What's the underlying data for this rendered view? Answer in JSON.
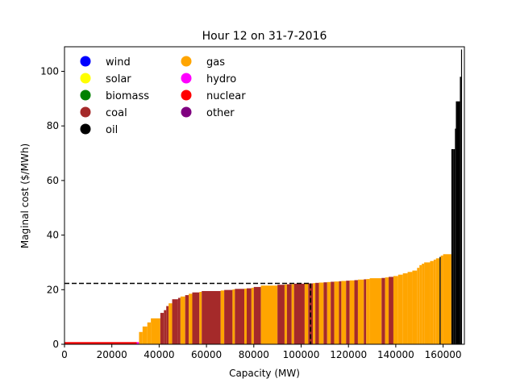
{
  "colors": {
    "wind": "#0000ff",
    "solar": "#ffff00",
    "biomass": "#008000",
    "coal": "#a52a2a",
    "oil": "#000000",
    "gas": "#ffa500",
    "hydro": "#ff00ff",
    "nuclear": "#ff0000",
    "other": "#800080"
  },
  "chart_data": {
    "type": "bar",
    "title": "Hour 12 on 31-7-2016",
    "xlabel": "Capacity (MW)",
    "ylabel": "Maginal cost ($/MWh)",
    "xlim": [
      0,
      169000
    ],
    "ylim": [
      0,
      109
    ],
    "xticks": [
      0,
      20000,
      40000,
      60000,
      80000,
      100000,
      120000,
      140000,
      160000
    ],
    "yticks": [
      0,
      20,
      40,
      60,
      80,
      100
    ],
    "legend": {
      "placement": "top-left",
      "columns": 2,
      "entries": [
        "wind",
        "solar",
        "biomass",
        "coal",
        "oil",
        "gas",
        "hydro",
        "nuclear",
        "other"
      ]
    },
    "clearing": {
      "capacity": 104000,
      "price": 22.3
    },
    "segments": [
      {
        "fuel": "nuclear",
        "from": 0,
        "to": 30500,
        "cost": 0.8
      },
      {
        "fuel": "hydro",
        "from": 30500,
        "to": 31500,
        "cost": 0.8
      },
      {
        "fuel": "gas",
        "from": 31500,
        "to": 33000,
        "cost": 4.5
      },
      {
        "fuel": "gas",
        "from": 33000,
        "to": 35000,
        "cost": 6.5
      },
      {
        "fuel": "gas",
        "from": 35000,
        "to": 36500,
        "cost": 8.0
      },
      {
        "fuel": "gas",
        "from": 36500,
        "to": 40500,
        "cost": 9.5
      },
      {
        "fuel": "coal",
        "from": 40500,
        "to": 42000,
        "cost": 11.5
      },
      {
        "fuel": "coal",
        "from": 42000,
        "to": 43000,
        "cost": 12.5
      },
      {
        "fuel": "coal",
        "from": 43000,
        "to": 44000,
        "cost": 14.0
      },
      {
        "fuel": "gas",
        "from": 44000,
        "to": 45500,
        "cost": 15.0
      },
      {
        "fuel": "coal",
        "from": 45500,
        "to": 48000,
        "cost": 16.5
      },
      {
        "fuel": "coal",
        "from": 48000,
        "to": 49000,
        "cost": 17.0
      },
      {
        "fuel": "gas",
        "from": 49000,
        "to": 51000,
        "cost": 17.5
      },
      {
        "fuel": "coal",
        "from": 51000,
        "to": 52500,
        "cost": 18.0
      },
      {
        "fuel": "gas",
        "from": 52500,
        "to": 54000,
        "cost": 18.5
      },
      {
        "fuel": "coal",
        "from": 54000,
        "to": 57000,
        "cost": 19.0
      },
      {
        "fuel": "gas",
        "from": 57000,
        "to": 58000,
        "cost": 19.2
      },
      {
        "fuel": "coal",
        "from": 58000,
        "to": 66000,
        "cost": 19.5
      },
      {
        "fuel": "gas",
        "from": 66000,
        "to": 67500,
        "cost": 19.7
      },
      {
        "fuel": "coal",
        "from": 67500,
        "to": 71000,
        "cost": 19.9
      },
      {
        "fuel": "gas",
        "from": 71000,
        "to": 72000,
        "cost": 20.1
      },
      {
        "fuel": "coal",
        "from": 72000,
        "to": 76000,
        "cost": 20.3
      },
      {
        "fuel": "gas",
        "from": 76000,
        "to": 77000,
        "cost": 20.4
      },
      {
        "fuel": "coal",
        "from": 77000,
        "to": 79000,
        "cost": 20.5
      },
      {
        "fuel": "gas",
        "from": 79000,
        "to": 80000,
        "cost": 20.7
      },
      {
        "fuel": "coal",
        "from": 80000,
        "to": 83000,
        "cost": 21.0
      },
      {
        "fuel": "gas",
        "from": 83000,
        "to": 90000,
        "cost": 21.5
      },
      {
        "fuel": "coal",
        "from": 90000,
        "to": 93000,
        "cost": 21.8
      },
      {
        "fuel": "gas",
        "from": 93000,
        "to": 94000,
        "cost": 21.9
      },
      {
        "fuel": "coal",
        "from": 94000,
        "to": 96000,
        "cost": 22.0
      },
      {
        "fuel": "gas",
        "from": 96000,
        "to": 97000,
        "cost": 22.0
      },
      {
        "fuel": "coal",
        "from": 97000,
        "to": 101500,
        "cost": 22.2
      },
      {
        "fuel": "gas",
        "from": 101500,
        "to": 103000,
        "cost": 22.2
      },
      {
        "fuel": "coal",
        "from": 103000,
        "to": 105000,
        "cost": 22.3
      },
      {
        "fuel": "gas",
        "from": 105000,
        "to": 106000,
        "cost": 22.4
      },
      {
        "fuel": "coal",
        "from": 106000,
        "to": 107500,
        "cost": 22.5
      },
      {
        "fuel": "gas",
        "from": 107500,
        "to": 109500,
        "cost": 22.6
      },
      {
        "fuel": "coal",
        "from": 109500,
        "to": 111000,
        "cost": 22.7
      },
      {
        "fuel": "gas",
        "from": 111000,
        "to": 112500,
        "cost": 22.8
      },
      {
        "fuel": "coal",
        "from": 112500,
        "to": 114000,
        "cost": 22.9
      },
      {
        "fuel": "gas",
        "from": 114000,
        "to": 116000,
        "cost": 23.0
      },
      {
        "fuel": "coal",
        "from": 116000,
        "to": 117000,
        "cost": 23.1
      },
      {
        "fuel": "gas",
        "from": 117000,
        "to": 119000,
        "cost": 23.2
      },
      {
        "fuel": "coal",
        "from": 119000,
        "to": 120500,
        "cost": 23.3
      },
      {
        "fuel": "gas",
        "from": 120500,
        "to": 122500,
        "cost": 23.4
      },
      {
        "fuel": "coal",
        "from": 122500,
        "to": 124000,
        "cost": 23.5
      },
      {
        "fuel": "gas",
        "from": 124000,
        "to": 126500,
        "cost": 23.7
      },
      {
        "fuel": "coal",
        "from": 126500,
        "to": 127500,
        "cost": 23.8
      },
      {
        "fuel": "gas",
        "from": 127500,
        "to": 129000,
        "cost": 23.9
      },
      {
        "fuel": "gas",
        "from": 129000,
        "to": 134000,
        "cost": 24.2
      },
      {
        "fuel": "coal",
        "from": 134000,
        "to": 135500,
        "cost": 24.3
      },
      {
        "fuel": "gas",
        "from": 135500,
        "to": 137000,
        "cost": 24.5
      },
      {
        "fuel": "coal",
        "from": 137000,
        "to": 139000,
        "cost": 24.7
      },
      {
        "fuel": "gas",
        "from": 139000,
        "to": 141000,
        "cost": 25.0
      },
      {
        "fuel": "gas",
        "from": 141000,
        "to": 143000,
        "cost": 25.5
      },
      {
        "fuel": "gas",
        "from": 143000,
        "to": 145000,
        "cost": 26.0
      },
      {
        "fuel": "gas",
        "from": 145000,
        "to": 147000,
        "cost": 26.5
      },
      {
        "fuel": "gas",
        "from": 147000,
        "to": 149000,
        "cost": 27.0
      },
      {
        "fuel": "gas",
        "from": 149000,
        "to": 150000,
        "cost": 28.0
      },
      {
        "fuel": "gas",
        "from": 150000,
        "to": 151000,
        "cost": 29.0
      },
      {
        "fuel": "gas",
        "from": 151000,
        "to": 152000,
        "cost": 29.5
      },
      {
        "fuel": "gas",
        "from": 152000,
        "to": 154500,
        "cost": 30.0
      },
      {
        "fuel": "gas",
        "from": 154500,
        "to": 156000,
        "cost": 30.5
      },
      {
        "fuel": "gas",
        "from": 156000,
        "to": 157000,
        "cost": 31.0
      },
      {
        "fuel": "gas",
        "from": 157000,
        "to": 158500,
        "cost": 31.5
      },
      {
        "fuel": "oil",
        "from": 158500,
        "to": 159000,
        "cost": 32.0
      },
      {
        "fuel": "gas",
        "from": 159000,
        "to": 160000,
        "cost": 32.5
      },
      {
        "fuel": "gas",
        "from": 160000,
        "to": 163500,
        "cost": 33.0
      },
      {
        "fuel": "oil",
        "from": 163500,
        "to": 164300,
        "cost": 71.5
      },
      {
        "fuel": "oil",
        "from": 164300,
        "to": 165000,
        "cost": 71.5
      },
      {
        "fuel": "oil",
        "from": 165000,
        "to": 165400,
        "cost": 79.0
      },
      {
        "fuel": "oil",
        "from": 165400,
        "to": 167100,
        "cost": 89.0
      },
      {
        "fuel": "oil",
        "from": 167100,
        "to": 167600,
        "cost": 98.0
      },
      {
        "fuel": "oil",
        "from": 167600,
        "to": 168000,
        "cost": 108.0
      }
    ]
  }
}
